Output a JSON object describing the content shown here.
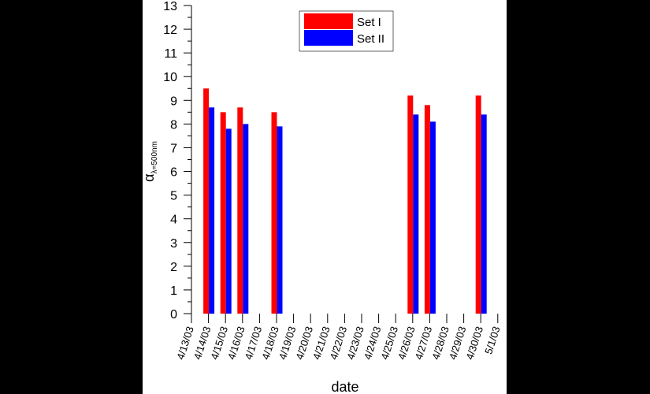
{
  "chart_data": {
    "type": "bar",
    "xlabel": "date",
    "ylabel": "α",
    "ylabel_subscript": "λ=500nm",
    "ylim": [
      0,
      13
    ],
    "yticks": [
      0,
      1,
      2,
      3,
      4,
      5,
      6,
      7,
      8,
      9,
      10,
      11,
      12,
      13
    ],
    "categories": [
      "4/13/03",
      "4/14/03",
      "4/15/03",
      "4/16/03",
      "4/17/03",
      "4/18/03",
      "4/19/03",
      "4/20/03",
      "4/21/03",
      "4/22/03",
      "4/23/03",
      "4/24/03",
      "4/25/03",
      "4/26/03",
      "4/27/03",
      "4/28/03",
      "4/29/03",
      "4/30/03",
      "5/1/03"
    ],
    "series": [
      {
        "name": "Set I",
        "color": "#ff0000",
        "values": [
          null,
          9.5,
          8.5,
          8.7,
          null,
          8.5,
          null,
          null,
          null,
          null,
          null,
          null,
          null,
          9.2,
          8.8,
          null,
          null,
          9.2,
          null
        ]
      },
      {
        "name": "Set II",
        "color": "#0000ff",
        "values": [
          null,
          8.7,
          7.8,
          8.0,
          null,
          7.9,
          null,
          null,
          null,
          null,
          null,
          null,
          null,
          8.4,
          8.1,
          null,
          null,
          8.4,
          null
        ]
      }
    ],
    "legend_position": "top-center",
    "grid": false
  }
}
